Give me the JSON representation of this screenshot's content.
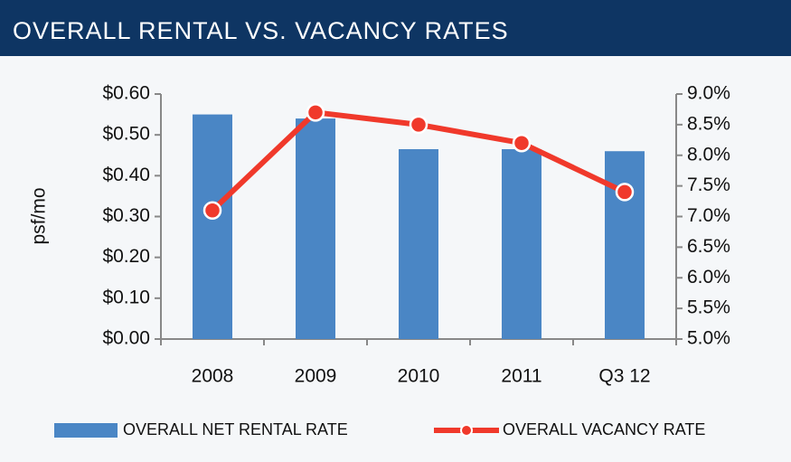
{
  "chart_data": {
    "type": "bar",
    "title": "OVERALL RENTAL VS. VACANCY RATES",
    "categories": [
      "2008",
      "2009",
      "2010",
      "2011",
      "Q3 12"
    ],
    "ylabel": "psf/mo",
    "ylim": [
      0,
      0.6
    ],
    "yticks": [
      {
        "value": 0,
        "label": "$0.00"
      },
      {
        "value": 0.1,
        "label": "$0.10"
      },
      {
        "value": 0.2,
        "label": "$0.20"
      },
      {
        "value": 0.3,
        "label": "$0.30"
      },
      {
        "value": 0.4,
        "label": "$0.40"
      },
      {
        "value": 0.5,
        "label": "$0.50"
      },
      {
        "value": 0.6,
        "label": "$0.60"
      }
    ],
    "y2lim": [
      5,
      9
    ],
    "y2ticks": [
      {
        "value": 5,
        "label": "5.0%"
      },
      {
        "value": 5.5,
        "label": "5.5%"
      },
      {
        "value": 6,
        "label": "6.0%"
      },
      {
        "value": 6.5,
        "label": "6.5%"
      },
      {
        "value": 7,
        "label": "7.0%"
      },
      {
        "value": 7.5,
        "label": "7.5%"
      },
      {
        "value": 8,
        "label": "8.0%"
      },
      {
        "value": 8.5,
        "label": "8.5%"
      },
      {
        "value": 9,
        "label": "9.0%"
      }
    ],
    "grid": false,
    "legend": "bottom",
    "series": [
      {
        "name": "OVERALL NET RENTAL RATE",
        "type": "bar",
        "color": "#4a86c5",
        "values": [
          0.55,
          0.54,
          0.465,
          0.465,
          0.46
        ]
      },
      {
        "name": "OVERALL VACANCY RATE",
        "type": "line",
        "axis": "y2",
        "color": "#f0392b",
        "values": [
          7.1,
          8.7,
          8.5,
          8.2,
          7.4
        ]
      }
    ]
  }
}
